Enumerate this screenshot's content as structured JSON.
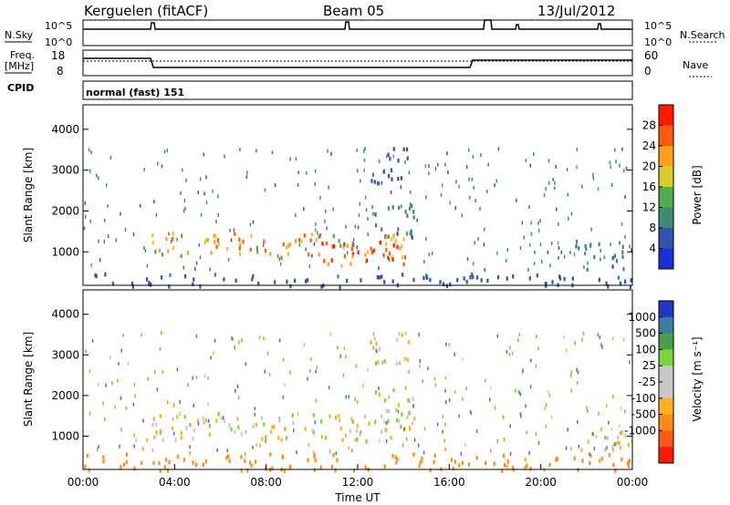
{
  "header": {
    "station": "Kerguelen (fitACF)",
    "beam": "Beam 05",
    "date": "13/Jul/2012"
  },
  "noise_panel": {
    "left_label": "N.Sky",
    "right_label": "N.Search",
    "ticks_top": "10^5",
    "ticks_bottom": "10^0"
  },
  "freq_panel": {
    "left_label_1": "Freq.",
    "left_label_2": "[MHz]",
    "left_tick_top": "18",
    "left_tick_bottom": "8",
    "right_label": "Nave",
    "right_tick_top": "60",
    "right_tick_bottom": "0"
  },
  "cpid_panel": {
    "label": "CPID",
    "value": "normal (fast) 151"
  },
  "colors": {
    "power_scale": [
      "#1a2fd6",
      "#2f55b0",
      "#3f8a72",
      "#4fae4a",
      "#d9cc2a",
      "#ff9f1a",
      "#ff5a10",
      "#ff1a00"
    ],
    "velocity_scale": [
      "#2436c8",
      "#3f7aa0",
      "#4aa04a",
      "#7ad43a",
      "#c8c8c8",
      "#c8c8c8",
      "#ffb21e",
      "#ff8a1a",
      "#ff5a14",
      "#ff1a00"
    ]
  },
  "chart_data": [
    {
      "type": "heatmap",
      "name": "power",
      "ylabel": "Slant Range [km]",
      "ylim": [
        180,
        4600
      ],
      "yticks": [
        "1000",
        "2000",
        "3000",
        "4000"
      ],
      "xlim_hours": [
        0,
        24
      ],
      "colorbar_label": "Power [dB]",
      "colorbar_ticks": [
        "4",
        "8",
        "12",
        "16",
        "20",
        "24",
        "28"
      ],
      "colorbar_range": [
        0,
        32
      ],
      "regions": [
        {
          "t": [
            3.0,
            14.5
          ],
          "r": [
            900,
            1500
          ],
          "peak": 24
        },
        {
          "t": [
            10.0,
            14.0
          ],
          "r": [
            700,
            1300
          ],
          "peak": 30
        },
        {
          "t": [
            12.5,
            14.5
          ],
          "r": [
            1400,
            2300
          ],
          "peak": 10
        },
        {
          "t": [
            12.5,
            14.2
          ],
          "r": [
            2700,
            3600
          ],
          "peak": 6
        },
        {
          "t": [
            21.5,
            24.0
          ],
          "r": [
            600,
            1300
          ],
          "peak": 10
        },
        {
          "t": [
            0,
            24
          ],
          "r": [
            180,
            500
          ],
          "peak": 6
        }
      ]
    },
    {
      "type": "heatmap",
      "name": "velocity",
      "ylabel": "Slant Range [km]",
      "xlabel": "Time UT",
      "ylim": [
        180,
        4600
      ],
      "yticks": [
        "1000",
        "2000",
        "3000",
        "4000"
      ],
      "xticks": [
        "00:00",
        "04:00",
        "08:00",
        "12:00",
        "16:00",
        "20:00",
        "00:00"
      ],
      "xlim_hours": [
        0,
        24
      ],
      "colorbar_label": "Velocity [m s⁻¹]",
      "colorbar_ticks": [
        "1000",
        "500",
        "100",
        "25",
        "-25",
        "-100",
        "-500",
        "-1000"
      ],
      "regions": [
        {
          "t": [
            3.0,
            14.5
          ],
          "r": [
            900,
            1600
          ],
          "v": 0
        },
        {
          "t": [
            12.5,
            14.5
          ],
          "r": [
            1400,
            2300
          ],
          "v": 0
        },
        {
          "t": [
            12.5,
            14.2
          ],
          "r": [
            2700,
            3600
          ],
          "v": 0
        },
        {
          "t": [
            21.5,
            24.0
          ],
          "r": [
            700,
            1300
          ],
          "v": 0
        },
        {
          "t": [
            0,
            24
          ],
          "r": [
            180,
            600
          ],
          "v": -150
        }
      ]
    }
  ]
}
